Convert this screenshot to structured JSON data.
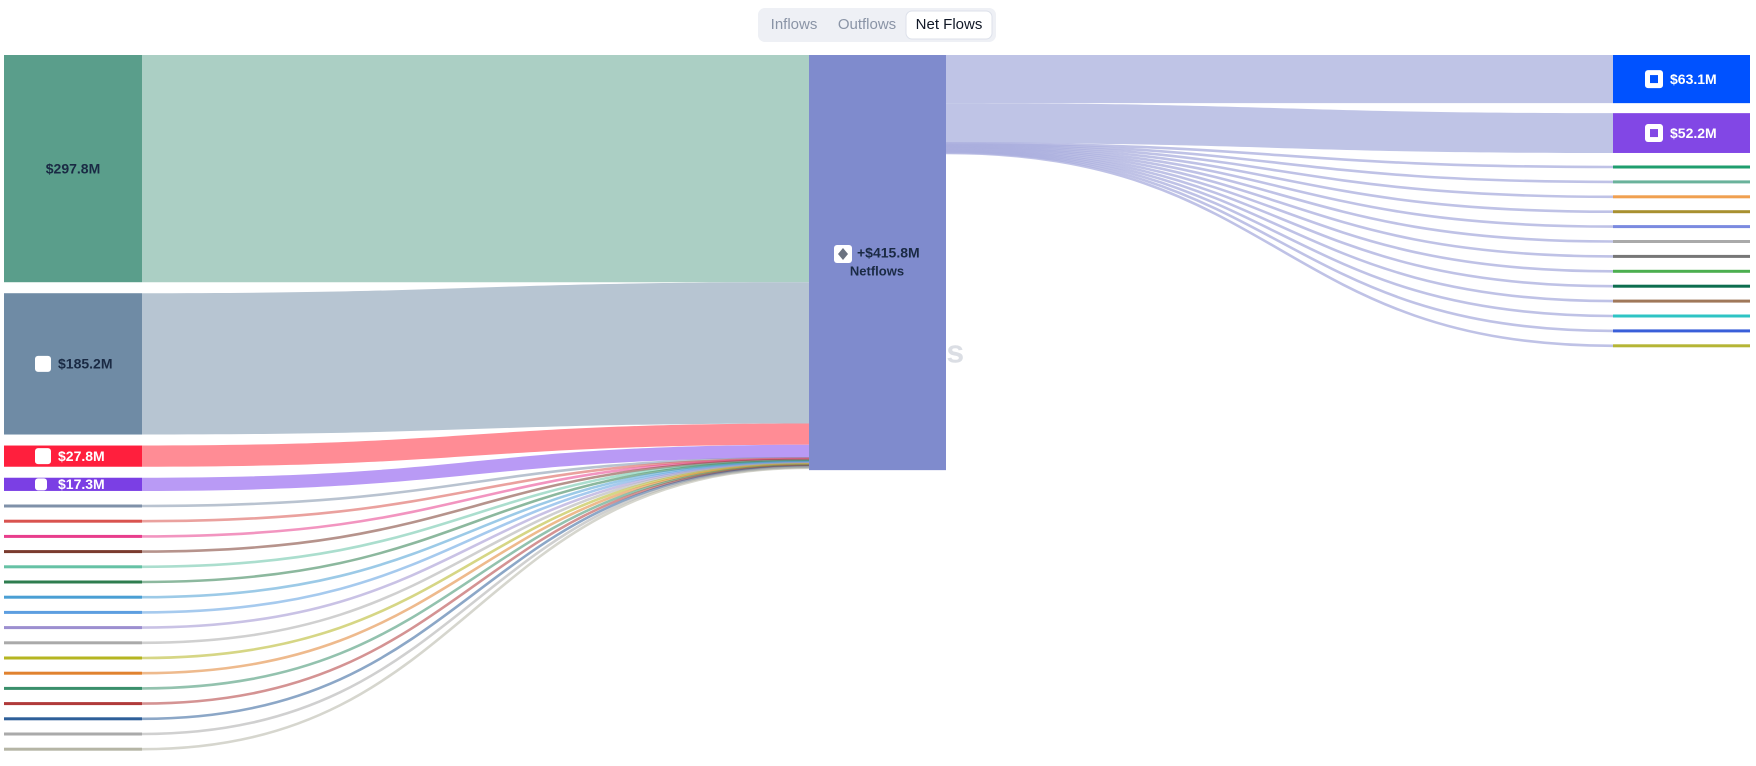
{
  "tabs": [
    "Inflows",
    "Outflows",
    "Net Flows"
  ],
  "active_tab": 2,
  "watermark": "Artemis",
  "center": {
    "label": "+$415.8M",
    "sublabel": "Netflows",
    "color": "#7f8bcd"
  },
  "sources": [
    {
      "label": "$297.8M",
      "value": 297.8,
      "color": "#5a9e8b",
      "flow_color": "#abcfc4",
      "text_color": "#1a2a44"
    },
    {
      "label": "$185.2M",
      "value": 185.2,
      "color": "#6f8ba5",
      "flow_color": "#b7c5d2",
      "text_color": "#1a2a44"
    },
    {
      "label": "$27.8M",
      "value": 27.8,
      "color": "#ff1f3d",
      "flow_color": "#ff8c95",
      "text_color": "#ffffff"
    },
    {
      "label": "$17.3M",
      "value": 17.3,
      "color": "#7b3fe4",
      "flow_color": "#b99af5",
      "text_color": "#ffffff"
    }
  ],
  "targets": [
    {
      "label": "$63.1M",
      "value": 63.1,
      "color": "#0052ff"
    },
    {
      "label": "$52.2M",
      "value": 52.2,
      "color": "#8247e5"
    }
  ],
  "target_flow_color": "#bfc4e6",
  "minor_source_colors": [
    "#7f91a9",
    "#d9534f",
    "#e83e8c",
    "#7a3b2e",
    "#66c2a5",
    "#2e7d4f",
    "#4a9fd4",
    "#5d9ee0",
    "#9c8fd0",
    "#aaaaaa",
    "#b5b521",
    "#e0822f",
    "#3a8f6b",
    "#b03a3a",
    "#2e5f99",
    "#aaaaaa",
    "#b5b5a5"
  ],
  "minor_target_colors": [
    "#1f9e6e",
    "#6ab29b",
    "#f0a050",
    "#a89030",
    "#7b8ae0",
    "#aaaaaa",
    "#777777",
    "#4caf50",
    "#0d6e4f",
    "#a0785a",
    "#2ec4c4",
    "#3a5fd9",
    "#b5b535"
  ],
  "minor_target_flow_color": "#a9aedd"
}
